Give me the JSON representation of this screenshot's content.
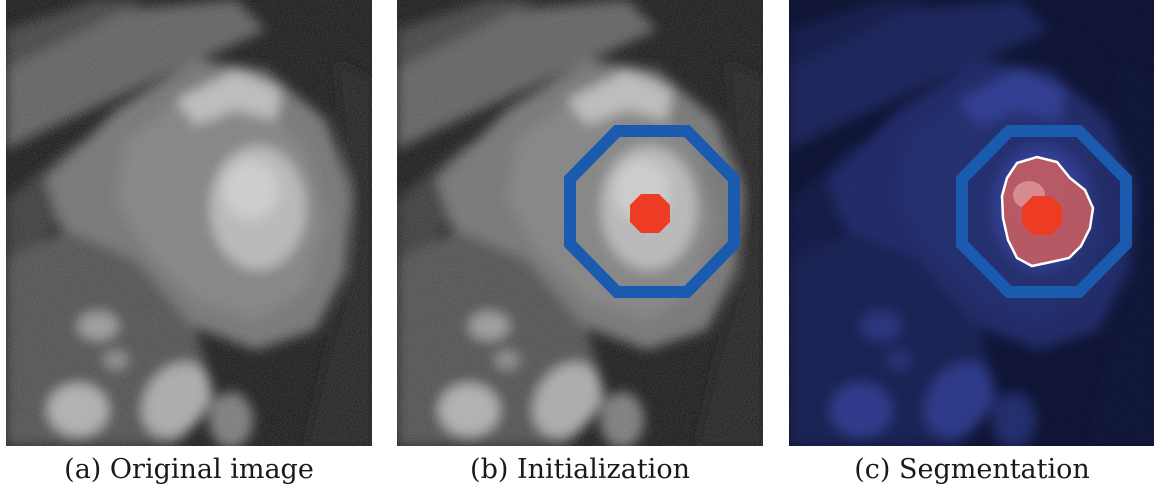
{
  "figure": {
    "captions": [
      "(a) Original image",
      "(b) Initialization",
      "(c) Segmentation"
    ]
  },
  "colors": {
    "contour": "#1a5bb0",
    "seed": "#ee3b24",
    "segmentation_fill": "#d8605a",
    "segmentation_outline": "#ffffff",
    "blue_tint": "#2b3fbf"
  }
}
